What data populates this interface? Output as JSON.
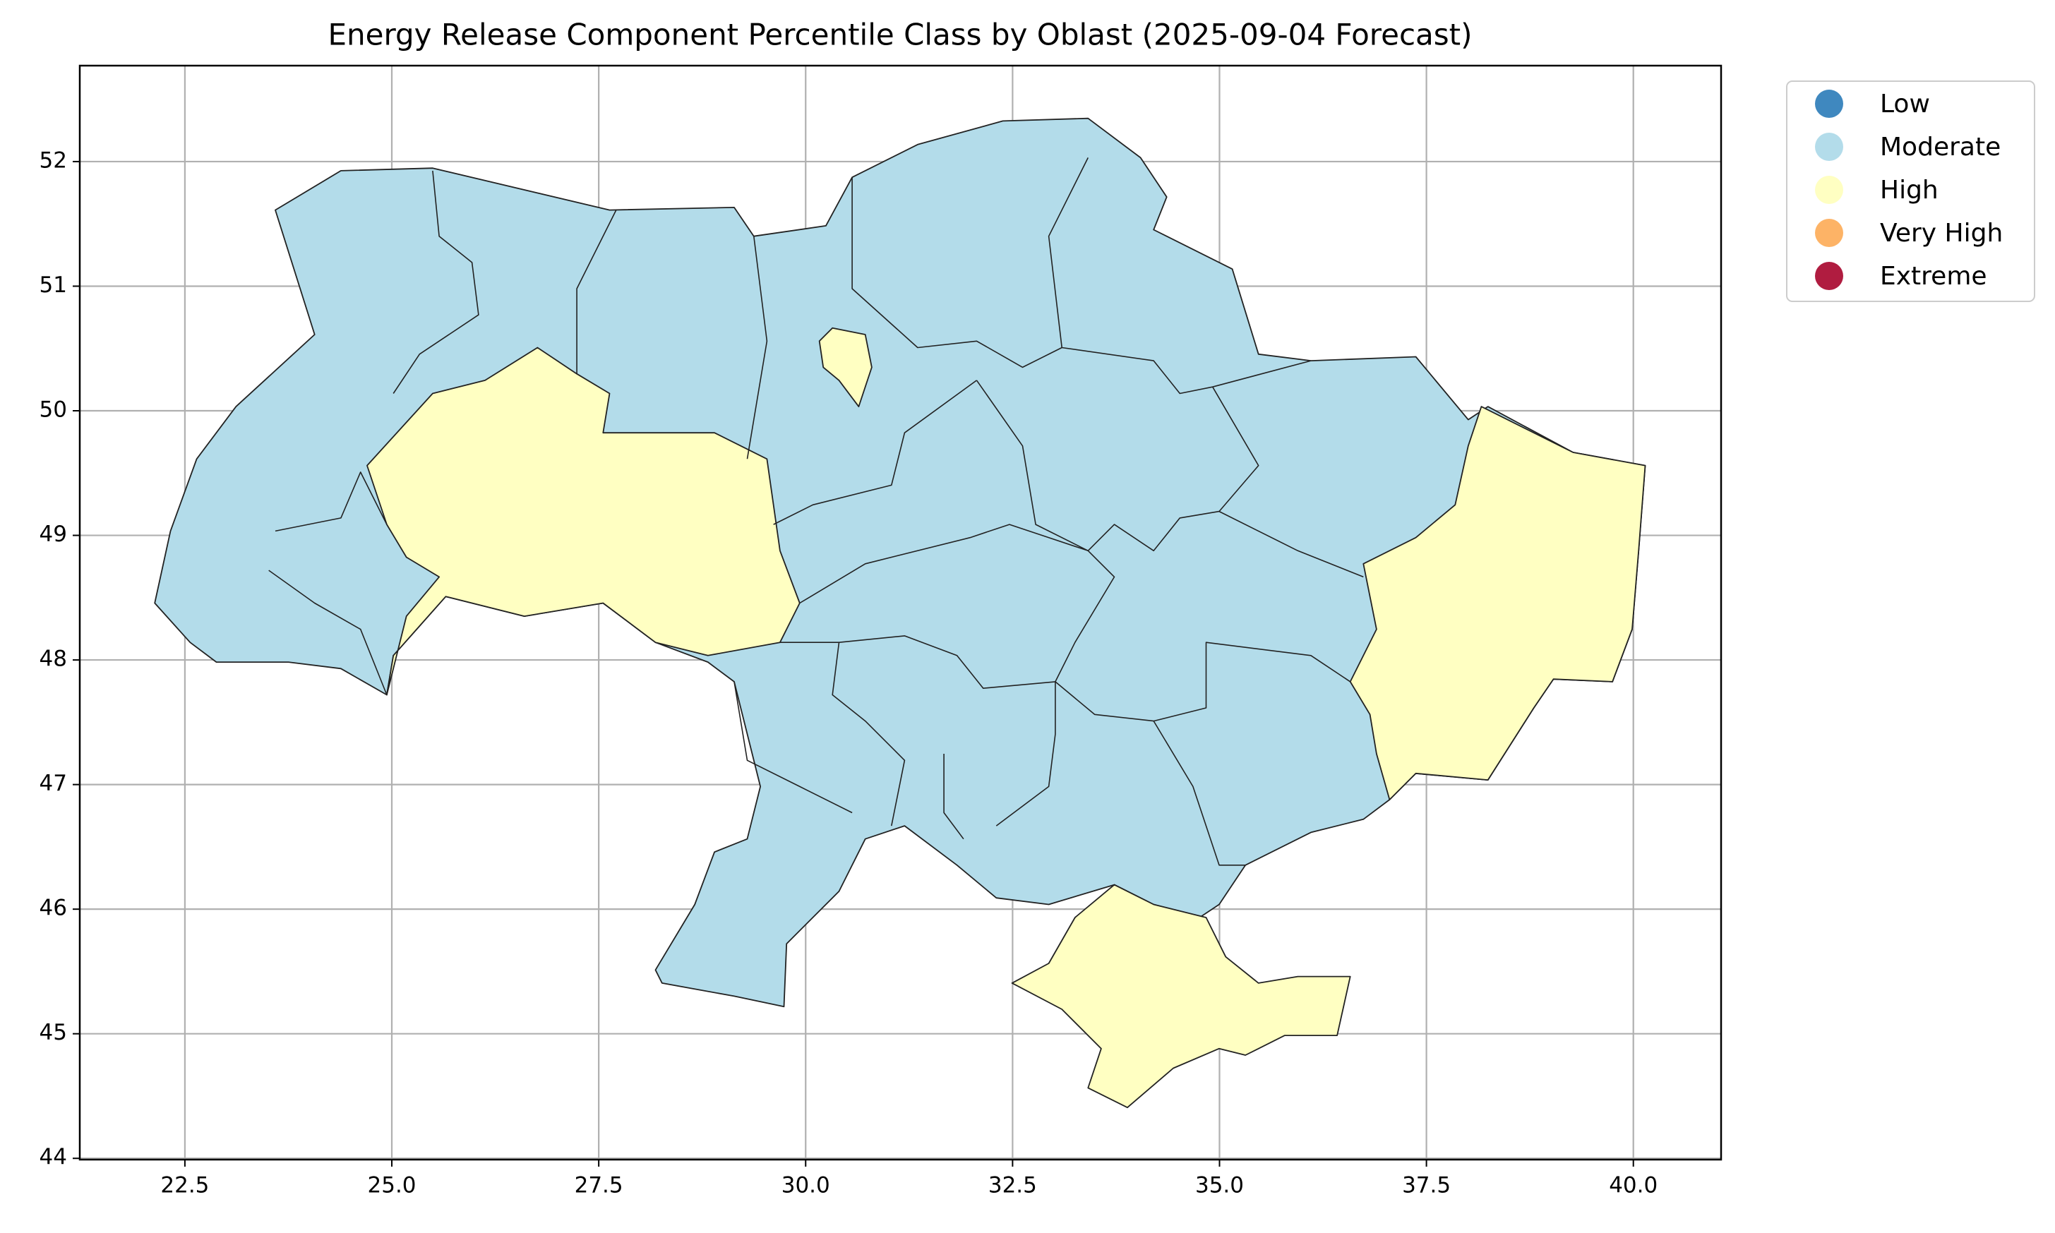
{
  "chart_data": {
    "type": "choropleth",
    "title": "Energy Release Component Percentile Class by Oblast (2025-09-04 Forecast)",
    "legend": [
      {
        "name": "Low",
        "color": "#3f88bf"
      },
      {
        "name": "Moderate",
        "color": "#b3dcea"
      },
      {
        "name": "High",
        "color": "#ffffc2"
      },
      {
        "name": "Very High",
        "color": "#fdb366"
      },
      {
        "name": "Extreme",
        "color": "#b01c40"
      }
    ],
    "legend_position": "outside upper right",
    "xlim": [
      21.23,
      41.06
    ],
    "ylim": [
      43.99,
      52.77
    ],
    "xticks": [
      22.5,
      {
        "value": 25,
        "label": "25.0"
      },
      27.5,
      {
        "value": 30,
        "label": "30.0"
      },
      32.5,
      {
        "value": 35,
        "label": "35.0"
      },
      37.5,
      {
        "value": 40,
        "label": "40.0"
      }
    ],
    "yticks": [
      44,
      45,
      46,
      47,
      48,
      49,
      50,
      51,
      52
    ],
    "grid": true
  }
}
